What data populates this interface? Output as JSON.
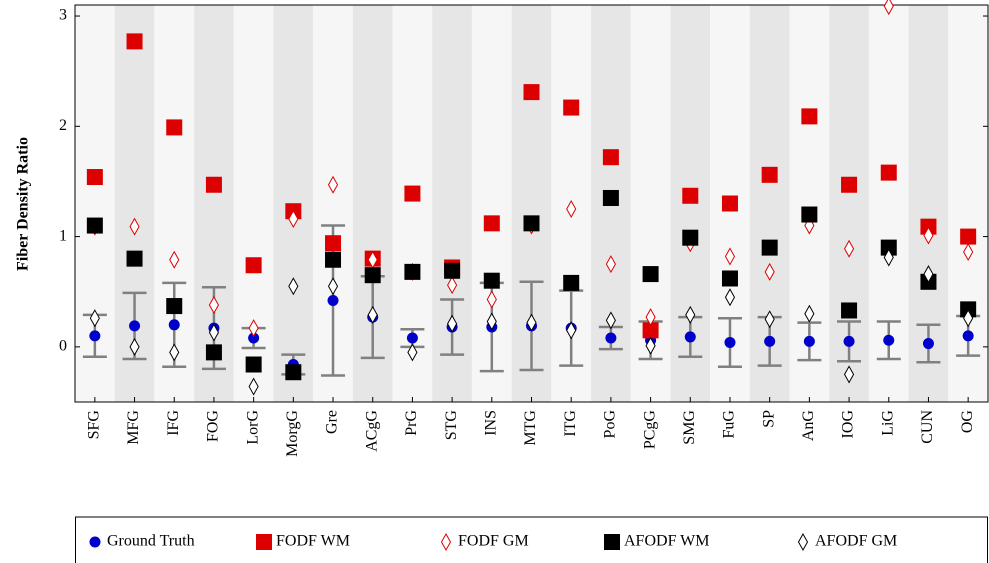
{
  "chart_data": {
    "type": "scatter",
    "ylabel": "Fiber Density Ratio",
    "categories": [
      "SFG",
      "MFG",
      "IFG",
      "FOG",
      "LorG",
      "MorgG",
      "Gre",
      "ACgG",
      "PrG",
      "STG",
      "INS",
      "MTG",
      "ITG",
      "PoG",
      "PCgG",
      "SMG",
      "FuG",
      "SP",
      "AnG",
      "IOG",
      "LiG",
      "CUN",
      "OG"
    ],
    "ylim": [
      -0.5,
      3.1
    ],
    "yticks": [
      0,
      1,
      2,
      3
    ],
    "series": [
      {
        "name": "Ground Truth",
        "color": "#0000cc",
        "marker": "circle",
        "values": [
          0.1,
          0.19,
          0.2,
          0.17,
          0.08,
          -0.16,
          0.42,
          0.27,
          0.08,
          0.18,
          0.18,
          0.19,
          0.17,
          0.08,
          0.06,
          0.09,
          0.04,
          0.05,
          0.05,
          0.05,
          0.06,
          0.03,
          0.1
        ],
        "errors": [
          0.19,
          0.3,
          0.38,
          0.37,
          0.09,
          0.09,
          0.68,
          0.37,
          0.08,
          0.25,
          0.4,
          0.4,
          0.34,
          0.1,
          0.17,
          0.18,
          0.22,
          0.22,
          0.17,
          0.18,
          0.17,
          0.17,
          0.18
        ]
      },
      {
        "name": "FODF WM",
        "color": "#dd0000",
        "marker": "square",
        "values": [
          1.54,
          2.77,
          1.99,
          1.47,
          0.74,
          1.23,
          0.94,
          0.8,
          1.39,
          0.72,
          1.12,
          2.31,
          2.17,
          1.72,
          0.15,
          1.37,
          1.3,
          1.56,
          2.09,
          1.47,
          1.58,
          1.09,
          1.0
        ]
      },
      {
        "name": "FODF GM",
        "color": "#dd0000",
        "marker": "diamond",
        "values": [
          1.09,
          1.09,
          0.79,
          0.38,
          0.17,
          1.16,
          1.47,
          0.79,
          0.68,
          0.56,
          0.43,
          1.1,
          1.25,
          0.75,
          0.27,
          0.94,
          0.82,
          0.68,
          1.1,
          0.89,
          3.09,
          1.01,
          0.86
        ]
      },
      {
        "name": "AFODF WM",
        "color": "#000000",
        "marker": "square",
        "values": [
          1.1,
          0.8,
          0.37,
          -0.05,
          -0.16,
          -0.23,
          0.79,
          0.65,
          0.68,
          0.69,
          0.6,
          1.12,
          0.58,
          1.35,
          0.66,
          0.99,
          0.62,
          0.9,
          1.2,
          0.33,
          0.9,
          0.59,
          0.34
        ]
      },
      {
        "name": "AFODF GM",
        "color": "#000000",
        "marker": "diamond",
        "values": [
          0.26,
          0.0,
          -0.05,
          0.13,
          -0.36,
          0.55,
          0.55,
          0.29,
          -0.05,
          0.21,
          0.23,
          0.22,
          0.15,
          0.24,
          0.01,
          0.29,
          0.45,
          0.25,
          0.3,
          -0.25,
          0.81,
          0.66,
          0.26
        ]
      }
    ]
  }
}
